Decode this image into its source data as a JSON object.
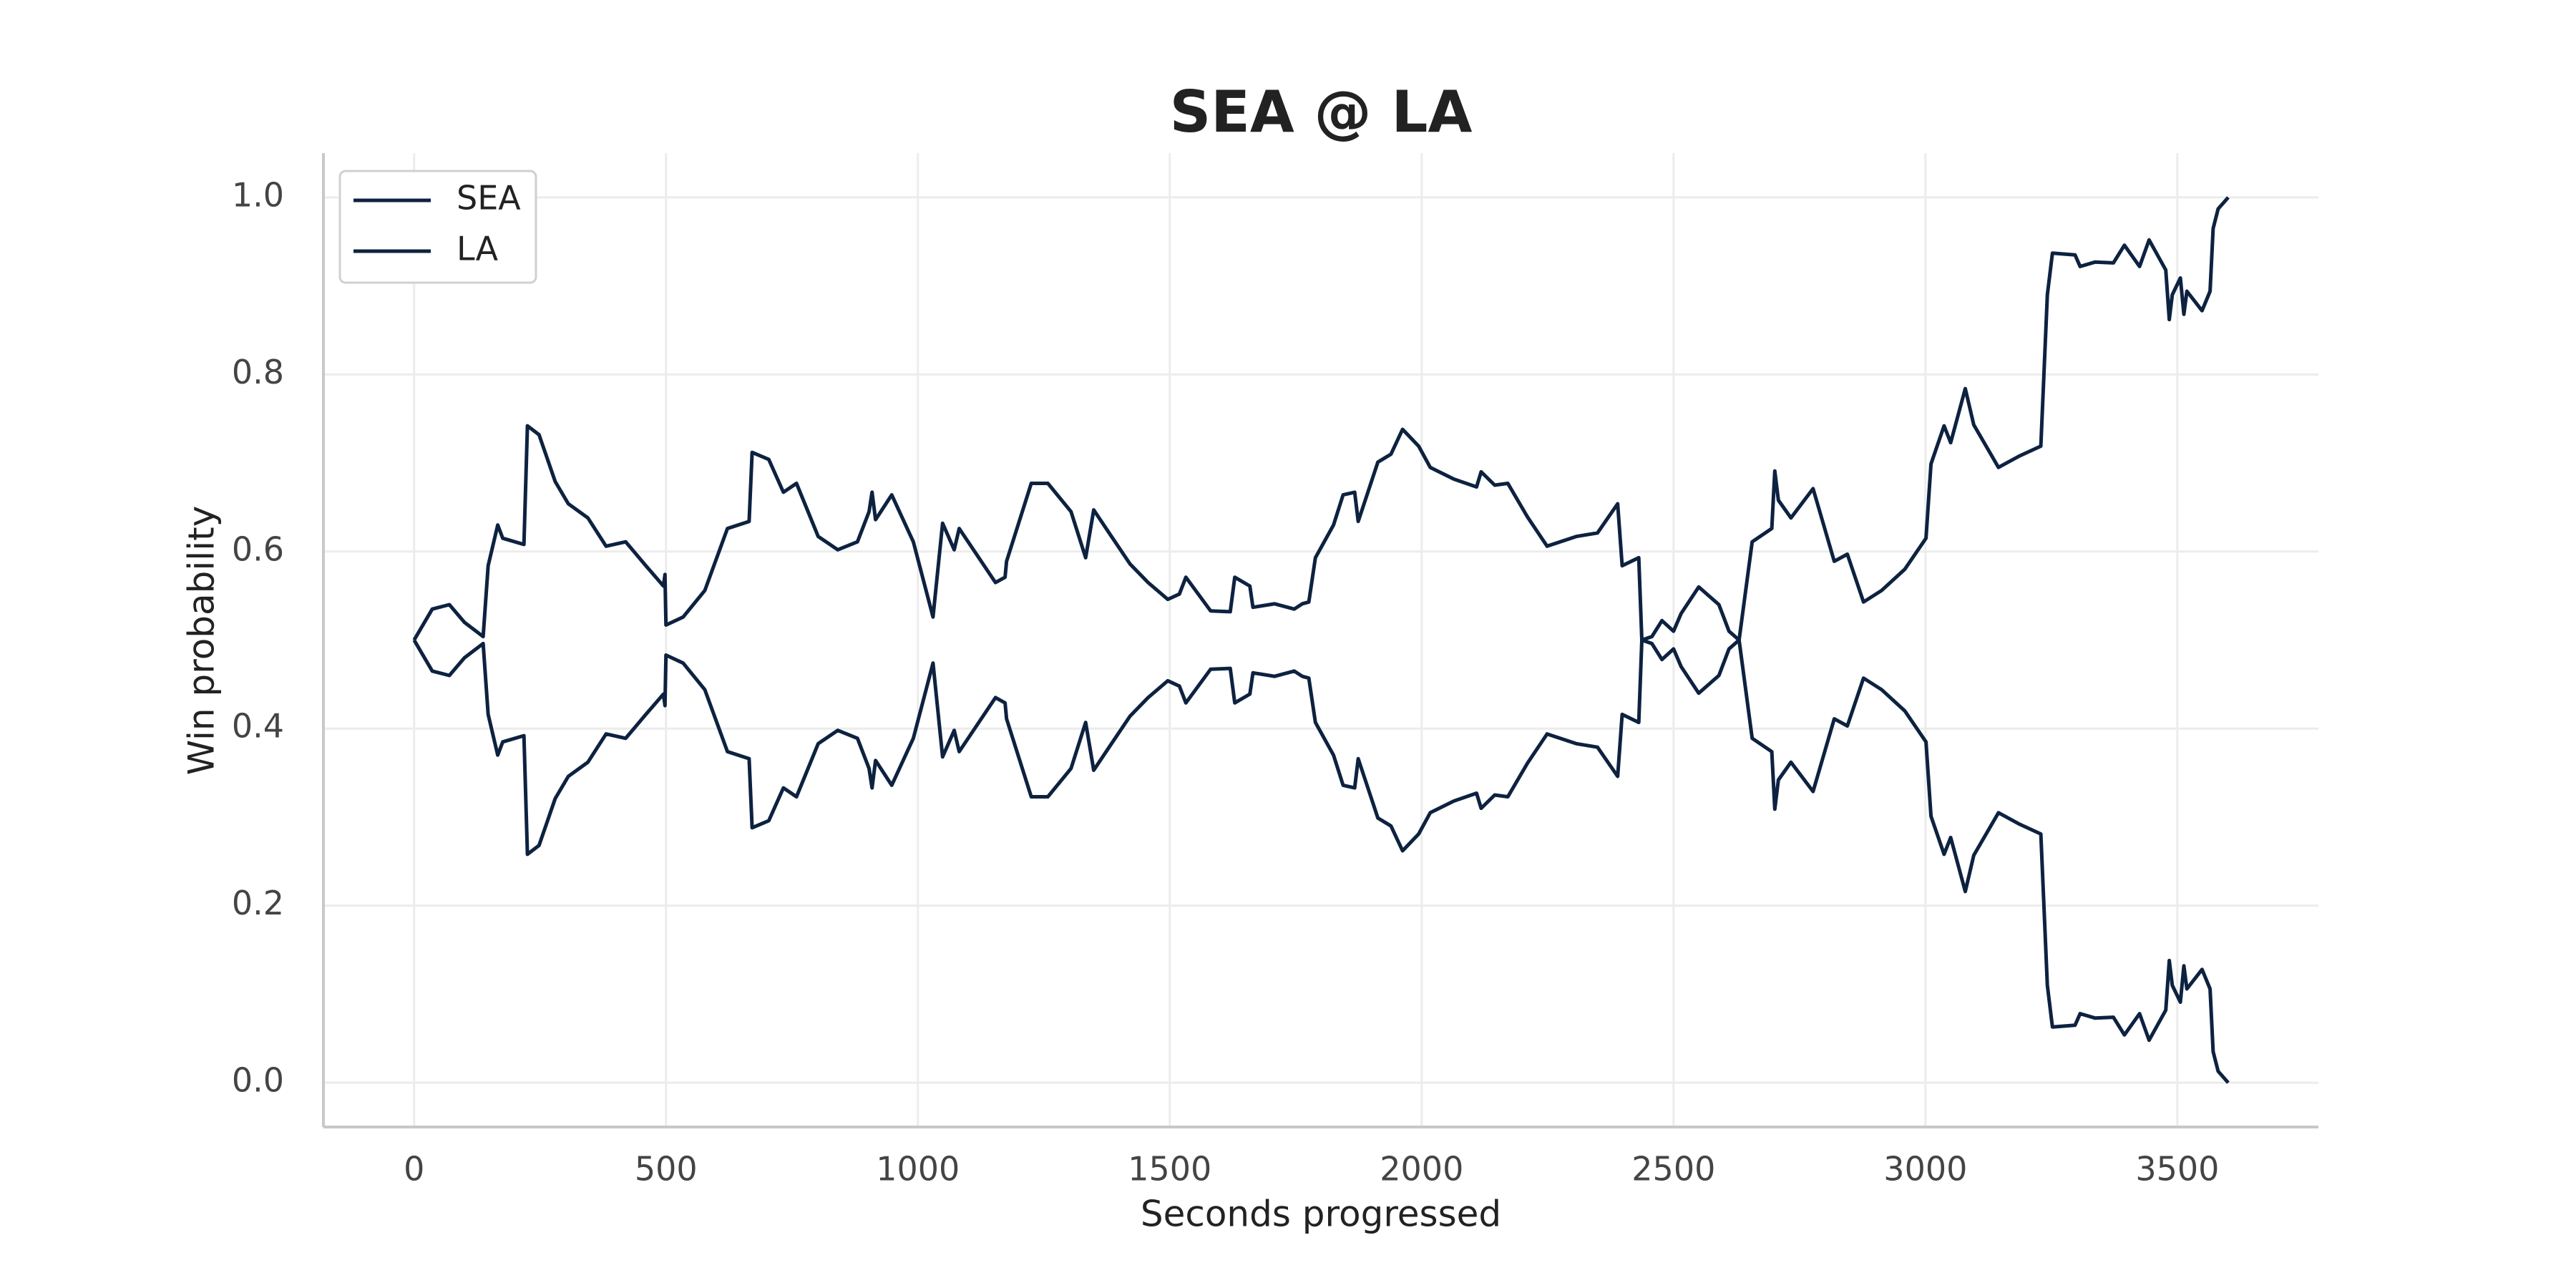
{
  "chart_data": {
    "type": "line",
    "title": "SEA @ LA",
    "xlabel": "Seconds progressed",
    "ylabel": "Win probability",
    "x": [
      0,
      36,
      70,
      100,
      137,
      147,
      166,
      176,
      218,
      225,
      248,
      280,
      306,
      345,
      381,
      420,
      460,
      495,
      498,
      500,
      534,
      577,
      622,
      665,
      671,
      704,
      733,
      759,
      802,
      841,
      880,
      903,
      909,
      916,
      948,
      991,
      1030,
      1049,
      1072,
      1082,
      1154,
      1173,
      1176,
      1225,
      1258,
      1304,
      1333,
      1349,
      1382,
      1421,
      1457,
      1496,
      1519,
      1532,
      1581,
      1620,
      1629,
      1659,
      1665,
      1708,
      1747,
      1763,
      1776,
      1789,
      1825,
      1844,
      1867,
      1874,
      1913,
      1939,
      1962,
      1994,
      2017,
      2063,
      2109,
      2118,
      2145,
      2171,
      2210,
      2249,
      2307,
      2349,
      2389,
      2398,
      2431,
      2437,
      2457,
      2477,
      2500,
      2515,
      2550,
      2590,
      2610,
      2630,
      2656,
      2695,
      2701,
      2708,
      2733,
      2777,
      2819,
      2845,
      2877,
      2913,
      2959,
      3001,
      3011,
      3037,
      3050,
      3079,
      3096,
      3145,
      3187,
      3229,
      3242,
      3252,
      3297,
      3307,
      3337,
      3373,
      3395,
      3425,
      3444,
      3477,
      3484,
      3490,
      3506,
      3513,
      3519,
      3549,
      3565,
      3571,
      3581,
      3601
    ],
    "series": [
      {
        "name": "SEA",
        "color": "#0d2240",
        "values": [
          0.5,
          0.535,
          0.54,
          0.52,
          0.504,
          0.584,
          0.63,
          0.615,
          0.608,
          0.742,
          0.732,
          0.679,
          0.654,
          0.638,
          0.606,
          0.611,
          0.584,
          0.561,
          0.574,
          0.517,
          0.526,
          0.556,
          0.626,
          0.634,
          0.712,
          0.704,
          0.667,
          0.677,
          0.617,
          0.602,
          0.611,
          0.645,
          0.667,
          0.636,
          0.664,
          0.611,
          0.526,
          0.632,
          0.602,
          0.626,
          0.565,
          0.571,
          0.589,
          0.677,
          0.677,
          0.645,
          0.593,
          0.647,
          0.619,
          0.586,
          0.565,
          0.546,
          0.552,
          0.571,
          0.533,
          0.532,
          0.571,
          0.561,
          0.537,
          0.541,
          0.535,
          0.541,
          0.543,
          0.593,
          0.63,
          0.664,
          0.667,
          0.634,
          0.701,
          0.71,
          0.738,
          0.719,
          0.695,
          0.682,
          0.673,
          0.69,
          0.675,
          0.677,
          0.639,
          0.606,
          0.617,
          0.621,
          0.654,
          0.584,
          0.593,
          0.5,
          0.496,
          0.478,
          0.49,
          0.47,
          0.44,
          0.46,
          0.49,
          0.5,
          0.611,
          0.626,
          0.691,
          0.658,
          0.638,
          0.671,
          0.589,
          0.597,
          0.543,
          0.556,
          0.58,
          0.615,
          0.699,
          0.742,
          0.723,
          0.784,
          0.743,
          0.695,
          0.708,
          0.719,
          0.89,
          0.937,
          0.935,
          0.922,
          0.927,
          0.926,
          0.946,
          0.922,
          0.952,
          0.918,
          0.862,
          0.89,
          0.909,
          0.868,
          0.894,
          0.872,
          0.894,
          0.965,
          0.987,
          1.0
        ]
      },
      {
        "name": "LA",
        "color": "#0d2240",
        "values": [
          0.5,
          0.465,
          0.46,
          0.48,
          0.496,
          0.416,
          0.37,
          0.385,
          0.392,
          0.258,
          0.268,
          0.321,
          0.346,
          0.362,
          0.394,
          0.389,
          0.416,
          0.439,
          0.426,
          0.483,
          0.474,
          0.444,
          0.374,
          0.366,
          0.288,
          0.296,
          0.333,
          0.323,
          0.383,
          0.398,
          0.389,
          0.355,
          0.333,
          0.364,
          0.336,
          0.389,
          0.474,
          0.368,
          0.398,
          0.374,
          0.435,
          0.429,
          0.411,
          0.323,
          0.323,
          0.355,
          0.407,
          0.353,
          0.381,
          0.414,
          0.435,
          0.454,
          0.448,
          0.429,
          0.467,
          0.468,
          0.429,
          0.439,
          0.463,
          0.459,
          0.465,
          0.459,
          0.457,
          0.407,
          0.37,
          0.336,
          0.333,
          0.366,
          0.299,
          0.29,
          0.262,
          0.281,
          0.305,
          0.318,
          0.327,
          0.31,
          0.325,
          0.323,
          0.361,
          0.394,
          0.383,
          0.379,
          0.346,
          0.416,
          0.407,
          0.5,
          0.504,
          0.522,
          0.51,
          0.53,
          0.56,
          0.54,
          0.51,
          0.5,
          0.389,
          0.374,
          0.309,
          0.342,
          0.362,
          0.329,
          0.411,
          0.403,
          0.457,
          0.444,
          0.42,
          0.385,
          0.301,
          0.258,
          0.277,
          0.216,
          0.257,
          0.305,
          0.292,
          0.281,
          0.11,
          0.063,
          0.065,
          0.078,
          0.073,
          0.074,
          0.054,
          0.078,
          0.048,
          0.082,
          0.138,
          0.11,
          0.091,
          0.132,
          0.106,
          0.128,
          0.106,
          0.035,
          0.013,
          0.0
        ]
      }
    ],
    "xlim": [
      -180,
      3780
    ],
    "xticks": [
      0,
      500,
      1000,
      1500,
      2000,
      2500,
      3000,
      3500
    ],
    "ylim": [
      -0.05,
      1.05
    ],
    "yticks": [
      {
        "value": 0,
        "label": "0.0"
      },
      0.2,
      0.4,
      0.6,
      0.8,
      {
        "value": 1,
        "label": "1.0"
      }
    ],
    "grid": true,
    "legend": "upper left"
  }
}
